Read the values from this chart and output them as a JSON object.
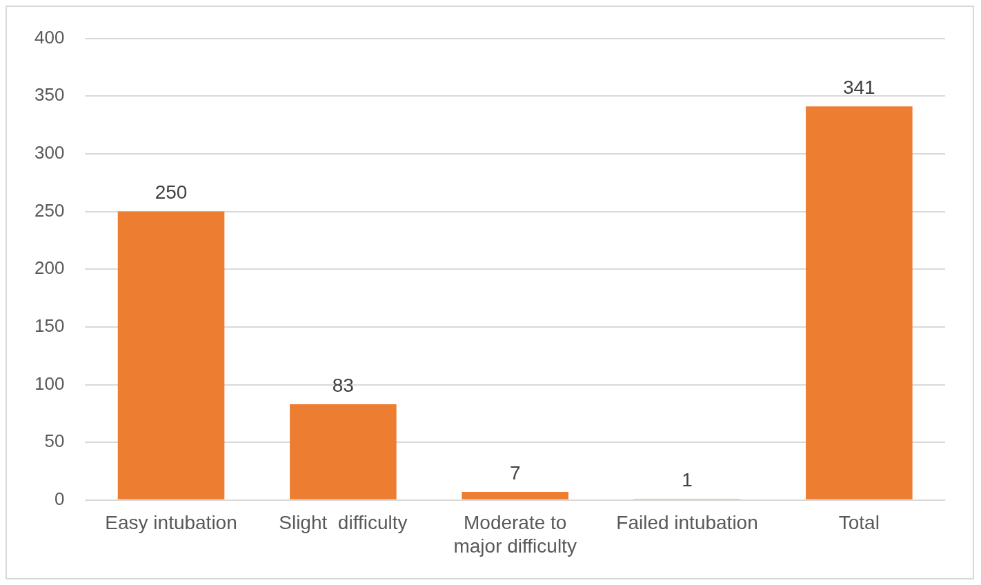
{
  "chart_data": {
    "type": "bar",
    "categories": [
      "Easy intubation",
      "Slight  difficulty",
      "Moderate to major difficulty",
      "Failed intubation",
      "Total"
    ],
    "values": [
      250,
      83,
      7,
      1,
      341
    ],
    "color": "#ed7d31",
    "ylim": [
      0,
      400
    ],
    "yticks": [
      0,
      50,
      100,
      150,
      200,
      250,
      300,
      350,
      400
    ],
    "grid": "y",
    "data_labels": true,
    "legend": false
  }
}
